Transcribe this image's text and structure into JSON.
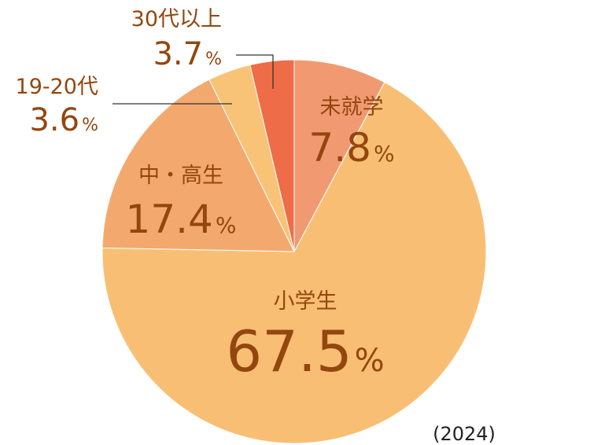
{
  "chart_data": {
    "type": "pie",
    "categories": [
      "未就学",
      "小学生",
      "中・高生",
      "19-20代",
      "30代以上"
    ],
    "values": [
      7.8,
      67.5,
      17.4,
      3.6,
      3.7
    ],
    "value_labels": [
      "7.8%",
      "67.5%",
      "17.4%",
      "3.6%",
      "3.7%"
    ],
    "colors": [
      "#f19a72",
      "#f8bf74",
      "#f3a96e",
      "#f8c376",
      "#ee6d48"
    ],
    "annotation": "(2024)"
  }
}
